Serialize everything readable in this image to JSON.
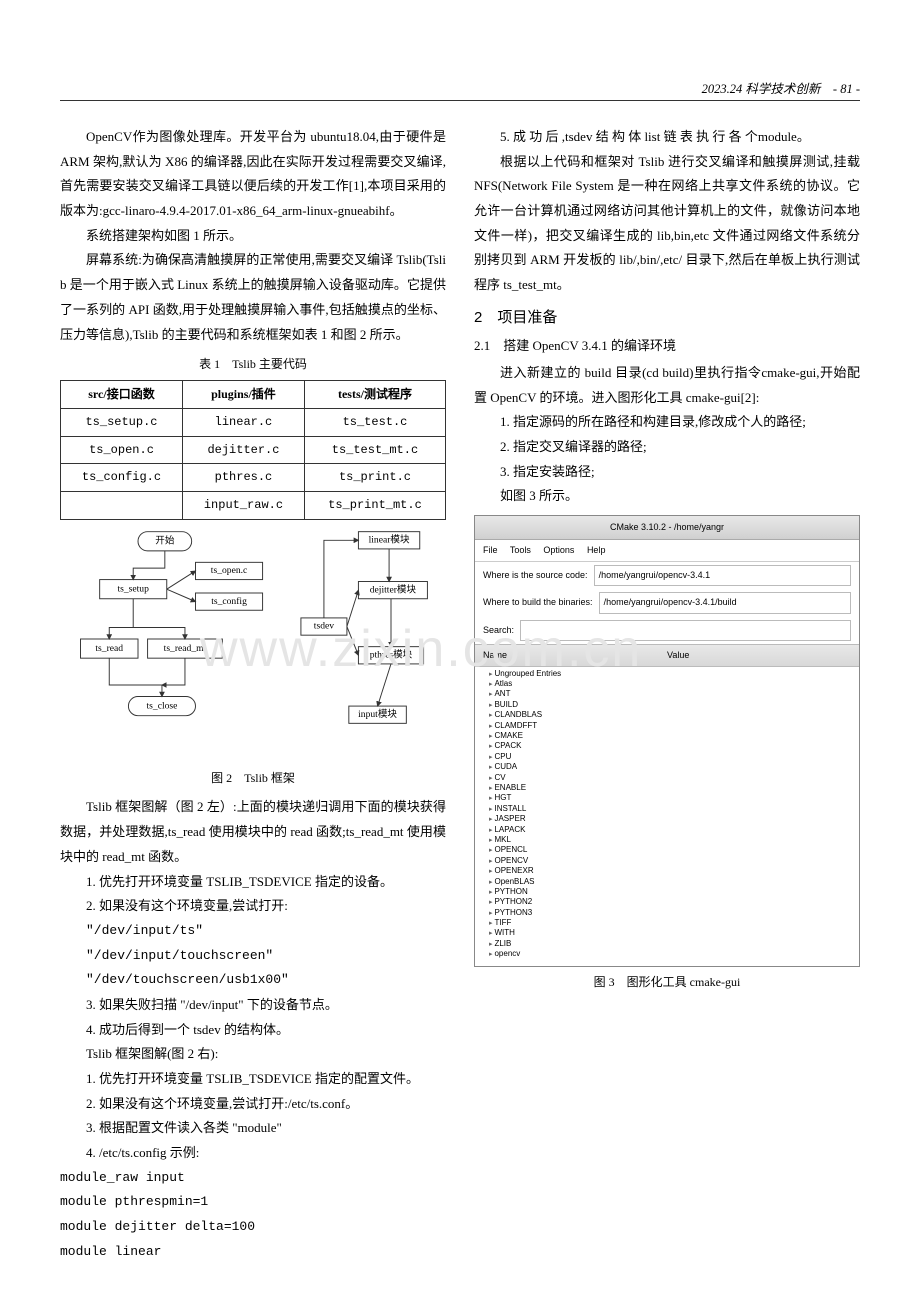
{
  "header": {
    "journal": "2023.24 科学技术创新",
    "page_no": "- 81 -"
  },
  "watermark": "www.zixin.com.cn",
  "col1": {
    "p1": "OpenCV作为图像处理库。开发平台为 ubuntu18.04,由于硬件是 ARM 架构,默认为 X86 的编译器,因此在实际开发过程需要交叉编译,首先需要安装交叉编译工具链以便后续的开发工作[1],本项目采用的版本为:gcc-linaro-4.9.4-2017.01-x86_64_arm-linux-gnueabihf。",
    "p2": "系统搭建架构如图 1 所示。",
    "p3": "屏幕系统:为确保高清触摸屏的正常使用,需要交叉编译 Tslib(Tslib 是一个用于嵌入式 Linux 系统上的触摸屏输入设备驱动库。它提供了一系列的 API 函数,用于处理触摸屏输入事件,包括触摸点的坐标、压力等信息),Tslib 的主要代码和系统框架如表 1 和图 2 所示。",
    "table1": {
      "caption": "表 1　Tslib 主要代码",
      "headers": [
        "src/接口函数",
        "plugins/插件",
        "tests/测试程序"
      ],
      "rows": [
        [
          "ts_setup.c",
          "linear.c",
          "ts_test.c"
        ],
        [
          "ts_open.c",
          "dejitter.c",
          "ts_test_mt.c"
        ],
        [
          "ts_config.c",
          "pthres.c",
          "ts_print.c"
        ],
        [
          "",
          "input_raw.c",
          "ts_print_mt.c"
        ]
      ]
    },
    "fig2": {
      "caption": "图 2　Tslib 框架",
      "left": {
        "start": "开始",
        "ts_setup": "ts_setup",
        "ts_open": "ts_open.c",
        "ts_config": "ts_config",
        "ts_read": "ts_read",
        "ts_read_mt": "ts_read_mt",
        "ts_close": "ts_close"
      },
      "right": {
        "linear": "linear模块",
        "dejitter": "dejitter模块",
        "tsdev": "tsdev",
        "pthres": "pthres模块",
        "input": "input模块"
      }
    },
    "p4": "Tslib 框架图解（图 2 左）:上面的模块递归调用下面的模块获得数据，并处理数据,ts_read 使用模块中的 read 函数;ts_read_mt 使用模块中的 read_mt 函数。",
    "l1": "1. 优先打开环境变量 TSLIB_TSDEVICE 指定的设备。",
    "l2": "2. 如果没有这个环境变量,尝试打开:",
    "q1": "\"/dev/input/ts\"",
    "q2": "\"/dev/input/touchscreen\"",
    "q3": "\"/dev/touchscreen/usb1x00\"",
    "l3": "3. 如果失败扫描 \"/dev/input\" 下的设备节点。",
    "l4": "4. 成功后得到一个 tsdev 的结构体。",
    "p5": "Tslib 框架图解(图 2 右):"
  },
  "col2": {
    "l1": "1. 优先打开环境变量 TSLIB_TSDEVICE 指定的配置文件。",
    "l2": "2. 如果没有这个环境变量,尝试打开:/etc/ts.conf。",
    "l3": "3. 根据配置文件读入各类 \"module\"",
    "l4": "4. /etc/ts.config 示例:",
    "c1": "module_raw input",
    "c2": "module pthrespmin=1",
    "c3": "module dejitter delta=100",
    "c4": "module linear",
    "l5": "5. 成 功 后 ,tsdev 结 构 体 list 链 表 执 行 各 个module。",
    "p1": "根据以上代码和框架对 Tslib 进行交叉编译和触摸屏测试,挂载 NFS(Network File System 是一种在网络上共享文件系统的协议。它允许一台计算机通过网络访问其他计算机上的文件，就像访问本地文件一样)，把交叉编译生成的 lib,bin,etc 文件通过网络文件系统分别拷贝到 ARM 开发板的 lib/,bin/,etc/ 目录下,然后在单板上执行测试程序 ts_test_mt。",
    "sec2": "2　项目准备",
    "sec21": "2.1　搭建 OpenCV 3.4.1 的编译环境",
    "p2": "进入新建立的 build 目录(cd build)里执行指令cmake-gui,开始配置 OpenCV 的环境。进入图形化工具 cmake-gui[2]:",
    "s1": "1. 指定源码的所在路径和构建目录,修改成个人的路径;",
    "s2": "2. 指定交叉编译器的路径;",
    "s3": "3. 指定安装路径;",
    "s4": "如图 3 所示。",
    "cmake": {
      "title": "CMake 3.10.2 - /home/yangr",
      "menu": [
        "File",
        "Tools",
        "Options",
        "Help"
      ],
      "src_lbl": "Where is the source code:",
      "src_val": "/home/yangrui/opencv-3.4.1",
      "bin_lbl": "Where to build the binaries:",
      "bin_val": "/home/yangrui/opencv-3.4.1/build",
      "search": "Search:",
      "col_name": "Name",
      "col_val": "Value",
      "entries": [
        "Ungrouped Entries",
        "Atlas",
        "ANT",
        "BUILD",
        "CLANDBLAS",
        "CLAMDFFT",
        "CMAKE",
        "CPACK",
        "CPU",
        "CUDA",
        "CV",
        "ENABLE",
        "HGT",
        "INSTALL",
        "JASPER",
        "LAPACK",
        "MKL",
        "OPENCL",
        "OPENCV",
        "OPENEXR",
        "OpenBLAS",
        "PYTHON",
        "PYTHON2",
        "PYTHON3",
        "TIFF",
        "WITH",
        "ZLIB",
        "opencv"
      ]
    },
    "fig3_caption": "图 3　图形化工具 cmake-gui"
  }
}
